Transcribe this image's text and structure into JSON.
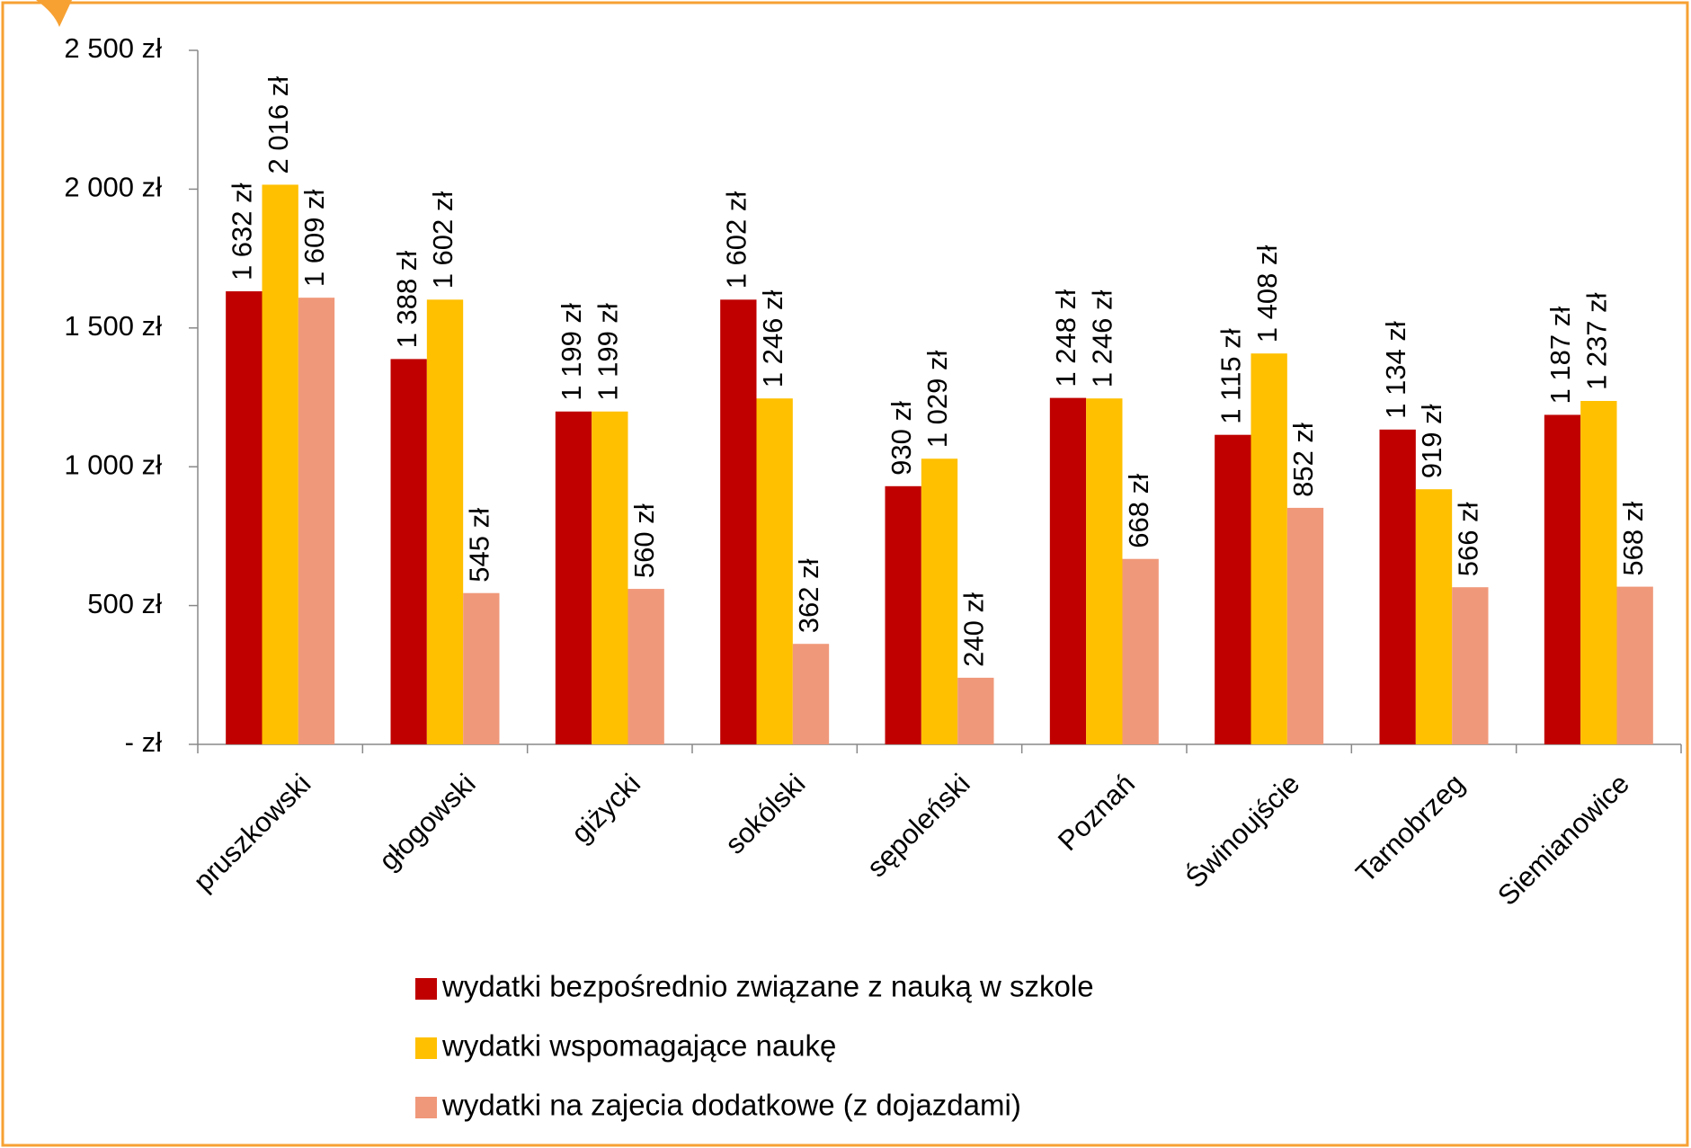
{
  "chart_data": {
    "type": "bar",
    "categories": [
      "pruszkowski",
      "głogowski",
      "giżycki",
      "sokólski",
      "sępoleński",
      "Poznań",
      "Świnoujście",
      "Tarnobrzeg",
      "Siemianowice"
    ],
    "series": [
      {
        "name": "wydatki bezpośrednio związane z nauką w szkole",
        "color": "#c00000",
        "values": [
          1632,
          1388,
          1199,
          1602,
          930,
          1248,
          1115,
          1134,
          1187
        ],
        "value_labels": [
          "1 632 zł",
          "1 388 zł",
          "1 199 zł",
          "1 602 zł",
          "930 zł",
          "1 248 zł",
          "1 115 zł",
          "1 134 zł",
          "1 187 zł"
        ]
      },
      {
        "name": "wydatki wspomagające naukę",
        "color": "#ffc000",
        "values": [
          2016,
          1602,
          1199,
          1246,
          1029,
          1246,
          1408,
          919,
          1237
        ],
        "value_labels": [
          "2 016 zł",
          "1 602 zł",
          "1 199 zł",
          "1 246 zł",
          "1 029 zł",
          "1 246 zł",
          "1 408 zł",
          "919 zł",
          "1 237 zł"
        ]
      },
      {
        "name": "wydatki na zajecia dodatkowe (z dojazdami)",
        "color": "#f0987a",
        "values": [
          1609,
          545,
          560,
          362,
          240,
          668,
          852,
          566,
          568
        ],
        "value_labels": [
          "1 609 zł",
          "545 zł",
          "560 zł",
          "362 zł",
          "240 zł",
          "668 zł",
          "852 zł",
          "566 zł",
          "568 zł"
        ]
      }
    ],
    "ylim": [
      0,
      2500
    ],
    "yticks": [
      {
        "value": 0,
        "label": "-   zł"
      },
      {
        "value": 500,
        "label": "500 zł"
      },
      {
        "value": 1000,
        "label": "1 000 zł"
      },
      {
        "value": 1500,
        "label": "1 500 zł"
      },
      {
        "value": 2000,
        "label": "2 000 zł"
      },
      {
        "value": 2500,
        "label": "2 500 zł"
      }
    ],
    "legend": "bottom"
  }
}
